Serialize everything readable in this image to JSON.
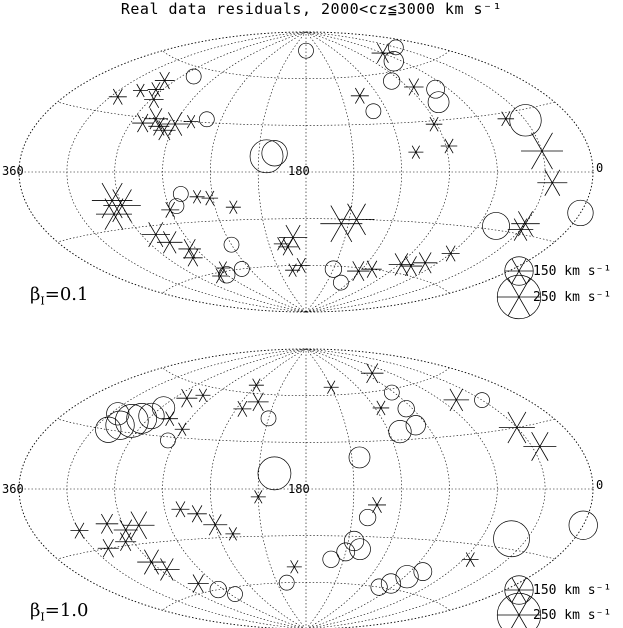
{
  "figure": {
    "title": "Real data residuals, 2000<cz≦3000 km s⁻¹"
  },
  "panels": [
    {
      "id": "top",
      "beta_symbol": "β",
      "beta_sub": "I",
      "beta_value": "=0.1",
      "label_left": "360",
      "label_center": "180",
      "label_right": "0",
      "legend": [
        {
          "value": 150,
          "text": "150 km s⁻¹"
        },
        {
          "value": 250,
          "text": "250 km s⁻¹"
        }
      ]
    },
    {
      "id": "bottom",
      "beta_symbol": "β",
      "beta_sub": "I",
      "beta_value": "=1.0",
      "label_left": "360",
      "label_center": "180",
      "label_right": "0",
      "legend": [
        {
          "value": 150,
          "text": "150 km s⁻¹"
        },
        {
          "value": 250,
          "text": "250 km s⁻¹"
        }
      ]
    }
  ],
  "chart_data": [
    {
      "type": "scatter",
      "projection": "aitoff",
      "title": "Real data residuals, 2000<cz≦3000 km s⁻¹",
      "xlim": [
        360,
        0
      ],
      "ylim": [
        -90,
        90
      ],
      "grid": true,
      "annotation": "β_I=0.1",
      "legend": [
        "150 km s⁻¹",
        "250 km s⁻¹"
      ],
      "points": [
        {
          "l": 330,
          "b": 70,
          "v": 60,
          "s": "n"
        },
        {
          "l": 300,
          "b": 70,
          "v": 110,
          "s": "p"
        },
        {
          "l": 292,
          "b": 65,
          "v": 90,
          "s": "n"
        },
        {
          "l": 330,
          "b": 25,
          "v": 170,
          "s": "n"
        },
        {
          "l": 330,
          "b": 10,
          "v": 240,
          "s": "p"
        },
        {
          "l": 335,
          "b": -5,
          "v": 160,
          "s": "p"
        },
        {
          "l": 318,
          "b": 27,
          "v": 70,
          "s": "p"
        },
        {
          "l": 290,
          "b": 47,
          "v": 80,
          "s": "n"
        },
        {
          "l": 282,
          "b": 40,
          "v": 100,
          "s": "n"
        },
        {
          "l": 275,
          "b": 50,
          "v": 90,
          "s": "p"
        },
        {
          "l": 262,
          "b": 55,
          "v": 70,
          "s": "n"
        },
        {
          "l": 268,
          "b": 28,
          "v": 70,
          "s": "p"
        },
        {
          "l": 272,
          "b": 15,
          "v": 70,
          "s": "p"
        },
        {
          "l": 250,
          "b": 12,
          "v": 60,
          "s": "p"
        },
        {
          "l": 225,
          "b": 48,
          "v": 80,
          "s": "p"
        },
        {
          "l": 230,
          "b": 38,
          "v": 60,
          "s": "n"
        },
        {
          "l": 360,
          "b": -17,
          "v": 130,
          "s": "n"
        },
        {
          "l": 330,
          "b": -25,
          "v": 150,
          "s": "p"
        },
        {
          "l": 330,
          "b": -28,
          "v": 130,
          "s": "p"
        },
        {
          "l": 312,
          "b": -28,
          "v": 140,
          "s": "n"
        },
        {
          "l": 300,
          "b": -45,
          "v": 80,
          "s": "p"
        },
        {
          "l": 290,
          "b": -52,
          "v": 120,
          "s": "p"
        },
        {
          "l": 282,
          "b": -55,
          "v": 110,
          "s": "p"
        },
        {
          "l": 272,
          "b": -55,
          "v": 130,
          "s": "p"
        },
        {
          "l": 250,
          "b": -60,
          "v": 90,
          "s": "p"
        },
        {
          "l": 238,
          "b": -62,
          "v": 110,
          "s": "p"
        },
        {
          "l": 230,
          "b": -70,
          "v": 60,
          "s": "n"
        },
        {
          "l": 210,
          "b": -62,
          "v": 70,
          "s": "n"
        },
        {
          "l": 205,
          "b": -33,
          "v": 240,
          "s": "p"
        },
        {
          "l": 215,
          "b": -30,
          "v": 200,
          "s": "p"
        },
        {
          "l": 170,
          "b": -42,
          "v": 150,
          "s": "p"
        },
        {
          "l": 165,
          "b": -48,
          "v": 90,
          "s": "p"
        },
        {
          "l": 160,
          "b": -46,
          "v": 60,
          "s": "p"
        },
        {
          "l": 175,
          "b": -60,
          "v": 70,
          "s": "p"
        },
        {
          "l": 160,
          "b": 12,
          "v": 130,
          "s": "n"
        },
        {
          "l": 155,
          "b": 10,
          "v": 180,
          "s": "n"
        },
        {
          "l": 132,
          "b": -22,
          "v": 60,
          "s": "p"
        },
        {
          "l": 118,
          "b": -16,
          "v": 70,
          "s": "p"
        },
        {
          "l": 110,
          "b": -15,
          "v": 60,
          "s": "p"
        },
        {
          "l": 100,
          "b": -13,
          "v": 60,
          "s": "n"
        },
        {
          "l": 95,
          "b": -20,
          "v": 60,
          "s": "n"
        },
        {
          "l": 90,
          "b": -22,
          "v": 80,
          "s": "p"
        },
        {
          "l": 120,
          "b": -45,
          "v": 60,
          "s": "n"
        },
        {
          "l": 112,
          "b": -60,
          "v": 60,
          "s": "n"
        },
        {
          "l": 95,
          "b": -58,
          "v": 60,
          "s": "p"
        },
        {
          "l": 60,
          "b": -18,
          "v": 210,
          "s": "p"
        },
        {
          "l": 55,
          "b": -15,
          "v": 230,
          "s": "p"
        },
        {
          "l": 52,
          "b": -22,
          "v": 200,
          "s": "p"
        },
        {
          "l": 70,
          "b": -35,
          "v": 150,
          "s": "p"
        },
        {
          "l": 75,
          "b": -40,
          "v": 130,
          "s": "p"
        },
        {
          "l": 85,
          "b": -45,
          "v": 110,
          "s": "p"
        },
        {
          "l": 80,
          "b": -50,
          "v": 90,
          "s": "p"
        },
        {
          "l": 90,
          "b": -62,
          "v": 70,
          "s": "n"
        },
        {
          "l": 82,
          "b": -62,
          "v": 70,
          "s": "p"
        },
        {
          "l": 110,
          "b": 32,
          "v": 60,
          "s": "n"
        },
        {
          "l": 100,
          "b": 30,
          "v": 60,
          "s": "p"
        },
        {
          "l": 90,
          "b": 28,
          "v": 140,
          "s": "p"
        },
        {
          "l": 85,
          "b": 24,
          "v": 110,
          "s": "p"
        },
        {
          "l": 80,
          "b": 26,
          "v": 100,
          "s": "p"
        },
        {
          "l": 75,
          "b": 30,
          "v": 120,
          "s": "p"
        },
        {
          "l": 68,
          "b": 27,
          "v": 100,
          "s": "p"
        },
        {
          "l": 62,
          "b": 40,
          "v": 90,
          "s": "p"
        },
        {
          "l": 55,
          "b": 45,
          "v": 70,
          "s": "p"
        },
        {
          "l": 52,
          "b": 50,
          "v": 90,
          "s": "p"
        },
        {
          "l": 45,
          "b": 43,
          "v": 60,
          "s": "p"
        },
        {
          "l": 35,
          "b": 38,
          "v": 80,
          "s": "p"
        },
        {
          "l": 70,
          "b": 55,
          "v": 60,
          "s": "n"
        },
        {
          "l": 180,
          "b": 78,
          "v": 60,
          "s": "n"
        },
        {
          "l": 165,
          "b": -63,
          "v": 60,
          "s": "p"
        }
      ]
    },
    {
      "type": "scatter",
      "projection": "aitoff",
      "title": "Real data residuals, 2000<cz≦3000 km s⁻¹",
      "xlim": [
        360,
        0
      ],
      "ylim": [
        -90,
        90
      ],
      "grid": true,
      "annotation": "β_I=1.0",
      "legend": [
        "150 km s⁻¹",
        "250 km s⁻¹"
      ],
      "points": [
        {
          "l": 330,
          "b": 45,
          "v": 60,
          "s": "n"
        },
        {
          "l": 330,
          "b": 30,
          "v": 200,
          "s": "p"
        },
        {
          "l": 335,
          "b": 20,
          "v": 180,
          "s": "p"
        },
        {
          "l": 312,
          "b": 48,
          "v": 130,
          "s": "p"
        },
        {
          "l": 280,
          "b": 70,
          "v": 110,
          "s": "p"
        },
        {
          "l": 268,
          "b": 58,
          "v": 60,
          "s": "n"
        },
        {
          "l": 265,
          "b": 48,
          "v": 70,
          "s": "n"
        },
        {
          "l": 262,
          "b": 38,
          "v": 90,
          "s": "n"
        },
        {
          "l": 248,
          "b": 35,
          "v": 110,
          "s": "n"
        },
        {
          "l": 245,
          "b": 50,
          "v": 70,
          "s": "p"
        },
        {
          "l": 215,
          "b": 20,
          "v": 100,
          "s": "n"
        },
        {
          "l": 210,
          "b": 65,
          "v": 60,
          "s": "p"
        },
        {
          "l": 160,
          "b": 10,
          "v": 180,
          "s": "n"
        },
        {
          "l": 225,
          "b": -10,
          "v": 80,
          "s": "p"
        },
        {
          "l": 220,
          "b": -18,
          "v": 70,
          "s": "n"
        },
        {
          "l": 360,
          "b": -15,
          "v": 150,
          "s": "n"
        },
        {
          "l": 320,
          "b": -25,
          "v": 200,
          "s": "n"
        },
        {
          "l": 305,
          "b": -38,
          "v": 70,
          "s": "p"
        },
        {
          "l": 280,
          "b": -48,
          "v": 80,
          "s": "n"
        },
        {
          "l": 272,
          "b": -52,
          "v": 110,
          "s": "n"
        },
        {
          "l": 265,
          "b": -57,
          "v": 90,
          "s": "n"
        },
        {
          "l": 258,
          "b": -60,
          "v": 70,
          "s": "n"
        },
        {
          "l": 220,
          "b": -38,
          "v": 100,
          "s": "n"
        },
        {
          "l": 214,
          "b": -33,
          "v": 90,
          "s": "n"
        },
        {
          "l": 210,
          "b": -40,
          "v": 80,
          "s": "n"
        },
        {
          "l": 200,
          "b": -45,
          "v": 70,
          "s": "n"
        },
        {
          "l": 170,
          "b": -50,
          "v": 60,
          "s": "p"
        },
        {
          "l": 160,
          "b": -60,
          "v": 60,
          "s": "n"
        },
        {
          "l": 150,
          "b": -5,
          "v": 60,
          "s": "p"
        },
        {
          "l": 120,
          "b": -22,
          "v": 120,
          "s": "p"
        },
        {
          "l": 110,
          "b": -15,
          "v": 90,
          "s": "p"
        },
        {
          "l": 100,
          "b": -12,
          "v": 80,
          "s": "p"
        },
        {
          "l": 130,
          "b": -28,
          "v": 60,
          "s": "p"
        },
        {
          "l": 120,
          "b": 65,
          "v": 60,
          "s": "p"
        },
        {
          "l": 135,
          "b": 55,
          "v": 100,
          "s": "p"
        },
        {
          "l": 125,
          "b": 50,
          "v": 80,
          "s": "p"
        },
        {
          "l": 150,
          "b": 45,
          "v": 60,
          "s": "n"
        },
        {
          "l": 80,
          "b": 55,
          "v": 60,
          "s": "p"
        },
        {
          "l": 70,
          "b": 52,
          "v": 100,
          "s": "p"
        },
        {
          "l": 62,
          "b": 45,
          "v": 110,
          "s": "n"
        },
        {
          "l": 60,
          "b": 40,
          "v": 130,
          "s": "n"
        },
        {
          "l": 55,
          "b": 38,
          "v": 160,
          "s": "n"
        },
        {
          "l": 50,
          "b": 36,
          "v": 180,
          "s": "n"
        },
        {
          "l": 45,
          "b": 33,
          "v": 150,
          "s": "n"
        },
        {
          "l": 40,
          "b": 30,
          "v": 130,
          "s": "n"
        },
        {
          "l": 35,
          "b": 38,
          "v": 110,
          "s": "n"
        },
        {
          "l": 75,
          "b": 40,
          "v": 70,
          "s": "p"
        },
        {
          "l": 90,
          "b": 35,
          "v": 60,
          "s": "p"
        },
        {
          "l": 85,
          "b": 28,
          "v": 60,
          "s": "n"
        },
        {
          "l": 70,
          "b": -20,
          "v": 170,
          "s": "p"
        },
        {
          "l": 60,
          "b": -22,
          "v": 120,
          "s": "p"
        },
        {
          "l": 50,
          "b": -18,
          "v": 110,
          "s": "p"
        },
        {
          "l": 55,
          "b": -28,
          "v": 100,
          "s": "p"
        },
        {
          "l": 60,
          "b": -40,
          "v": 150,
          "s": "p"
        },
        {
          "l": 65,
          "b": -45,
          "v": 130,
          "s": "p"
        },
        {
          "l": 75,
          "b": -55,
          "v": 100,
          "s": "p"
        },
        {
          "l": 85,
          "b": -60,
          "v": 70,
          "s": "n"
        },
        {
          "l": 95,
          "b": -64,
          "v": 60,
          "s": "n"
        },
        {
          "l": 40,
          "b": -30,
          "v": 100,
          "s": "p"
        },
        {
          "l": 30,
          "b": -20,
          "v": 80,
          "s": "p"
        }
      ]
    }
  ]
}
